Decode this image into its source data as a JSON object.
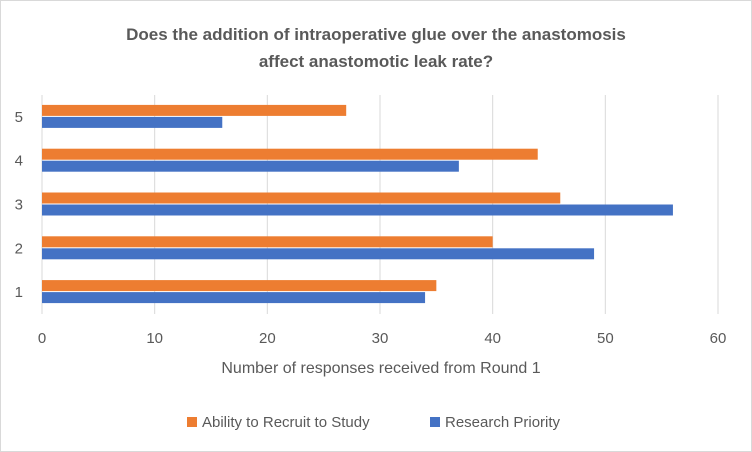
{
  "chart_data": {
    "type": "bar",
    "orientation": "horizontal",
    "title_lines": [
      "Does the addition  of intraoperative glue over the anastomosis",
      "affect anastomotic leak rate?"
    ],
    "categories": [
      "1",
      "2",
      "3",
      "4",
      "5"
    ],
    "series": [
      {
        "name": "Research Priority",
        "color": "#4472C4",
        "values": [
          34,
          49,
          56,
          37,
          16
        ]
      },
      {
        "name": "Ability to Recruit to Study",
        "color": "#ED7D31",
        "values": [
          35,
          40,
          46,
          44,
          27
        ]
      }
    ],
    "xlabel": "Number of responses received from Round 1",
    "ylabel": "",
    "xlim": [
      0,
      60
    ],
    "xticks": [
      "0",
      "10",
      "20",
      "30",
      "40",
      "50",
      "60"
    ],
    "grid": "vertical",
    "legend_position": "bottom",
    "legend_order": [
      "Ability to Recruit to Study",
      "Research Priority"
    ]
  }
}
